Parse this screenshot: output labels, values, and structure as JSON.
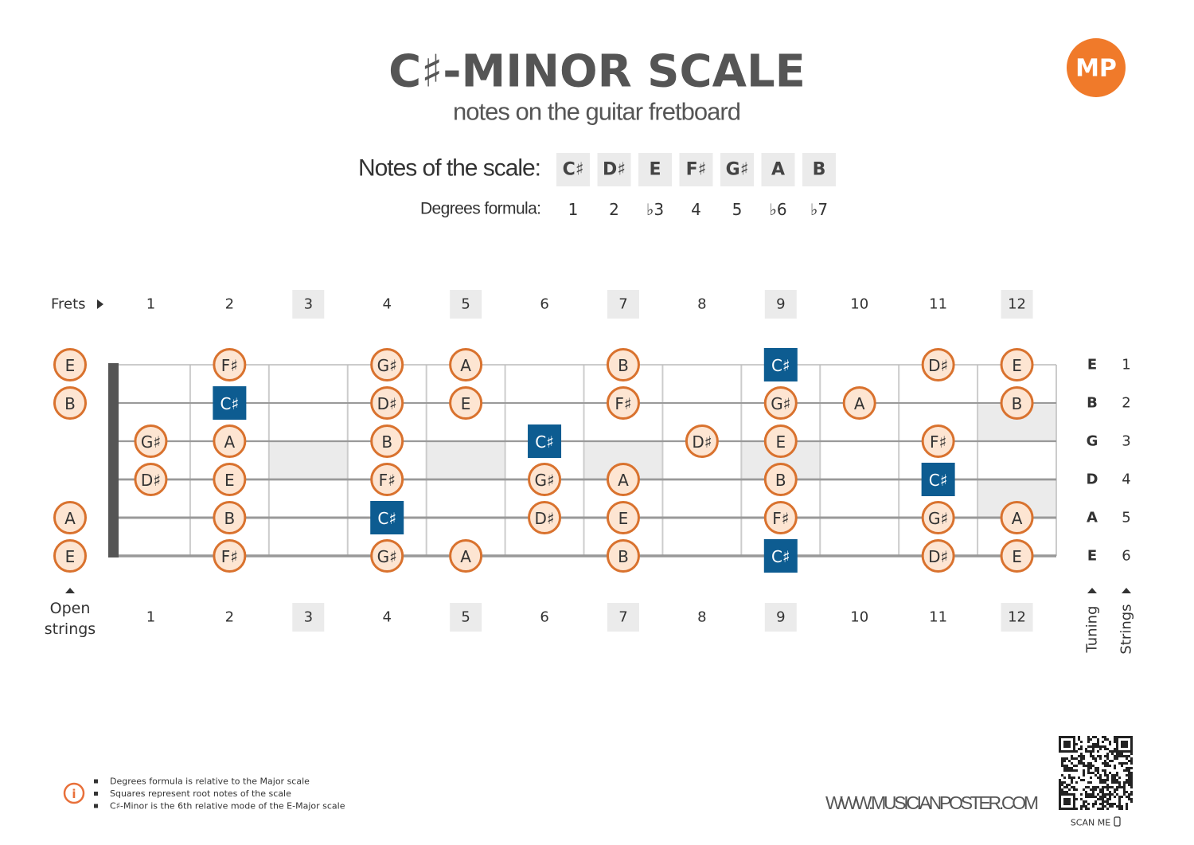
{
  "header": {
    "title": "C♯-MINOR SCALE",
    "subtitle": "notes on the guitar fretboard",
    "logo": "MP"
  },
  "scale": {
    "label": "Notes of the scale:",
    "notes": [
      "C♯",
      "D♯",
      "E",
      "F♯",
      "G♯",
      "A",
      "B"
    ],
    "degrees_label": "Degrees formula:",
    "degrees": [
      "1",
      "2",
      "♭3",
      "4",
      "5",
      "♭6",
      "♭7"
    ]
  },
  "fretboard": {
    "frets_label": "Frets",
    "frets": [
      1,
      2,
      3,
      4,
      5,
      6,
      7,
      8,
      9,
      10,
      11,
      12
    ],
    "inlays": [
      null,
      null,
      "single",
      null,
      "single",
      null,
      "single",
      null,
      "single",
      null,
      null,
      "double"
    ],
    "open_label": "Open strings",
    "tuning_label": "Tuning",
    "strings_label": "Strings",
    "strings": [
      {
        "tuning": "E",
        "number": 1,
        "open": "E",
        "notes": [
          null,
          "F♯",
          null,
          "G♯",
          "A",
          null,
          "B",
          null,
          "C♯",
          null,
          "D♯",
          "E"
        ]
      },
      {
        "tuning": "B",
        "number": 2,
        "open": "B",
        "notes": [
          null,
          "C♯",
          null,
          "D♯",
          "E",
          null,
          "F♯",
          null,
          "G♯",
          "A",
          null,
          "B"
        ]
      },
      {
        "tuning": "G",
        "number": 3,
        "open": null,
        "notes": [
          "G♯",
          "A",
          null,
          "B",
          null,
          "C♯",
          null,
          "D♯",
          "E",
          null,
          "F♯",
          null
        ]
      },
      {
        "tuning": "D",
        "number": 4,
        "open": null,
        "notes": [
          "D♯",
          "E",
          null,
          "F♯",
          null,
          "G♯",
          "A",
          null,
          "B",
          null,
          "C♯",
          null
        ]
      },
      {
        "tuning": "A",
        "number": 5,
        "open": "A",
        "notes": [
          null,
          "B",
          null,
          "C♯",
          null,
          "D♯",
          "E",
          null,
          "F♯",
          null,
          "G♯",
          "A"
        ]
      },
      {
        "tuning": "E",
        "number": 6,
        "open": "E",
        "notes": [
          null,
          "F♯",
          null,
          "G♯",
          "A",
          null,
          "B",
          null,
          "C♯",
          null,
          "D♯",
          "E"
        ]
      }
    ]
  },
  "footer": {
    "notes": [
      "Degrees formula is relative to the Major scale",
      "Squares represent root notes of the scale",
      "C♯-Minor is the 6th relative mode of the E-Major scale"
    ],
    "website": "WWW.MUSICIANPOSTER.COM",
    "scan": "SCAN ME"
  }
}
